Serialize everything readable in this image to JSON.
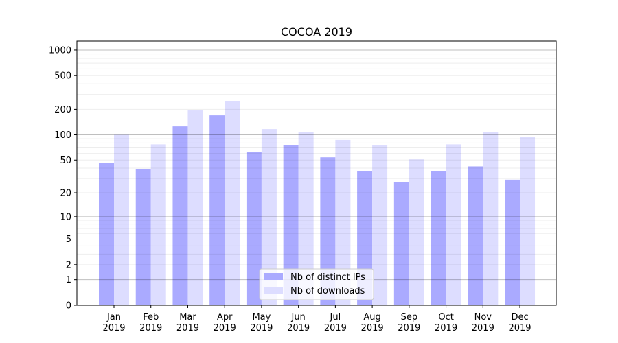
{
  "chart_data": {
    "type": "bar",
    "title": "COCOA 2019",
    "xlabel": "",
    "ylabel": "",
    "yscale": "log(1+y)",
    "ylim": [
      0,
      1300
    ],
    "yticks": [
      0,
      1,
      2,
      5,
      10,
      20,
      50,
      100,
      200,
      500,
      1000
    ],
    "grid": true,
    "legend_position": "lower center",
    "categories": [
      "Jan\n2019",
      "Feb\n2019",
      "Mar\n2019",
      "Apr\n2019",
      "May\n2019",
      "Jun\n2019",
      "Jul\n2019",
      "Aug\n2019",
      "Sep\n2019",
      "Oct\n2019",
      "Nov\n2019",
      "Dec\n2019"
    ],
    "series": [
      {
        "name": "Nb of distinct IPs",
        "color": "#aaaaff",
        "values": [
          46,
          39,
          126,
          170,
          63,
          75,
          54,
          37,
          27,
          37,
          42,
          29
        ]
      },
      {
        "name": "Nb of downloads",
        "color": "#ddddff",
        "values": [
          100,
          77,
          194,
          252,
          117,
          107,
          87,
          76,
          51,
          77,
          107,
          94
        ]
      }
    ]
  }
}
